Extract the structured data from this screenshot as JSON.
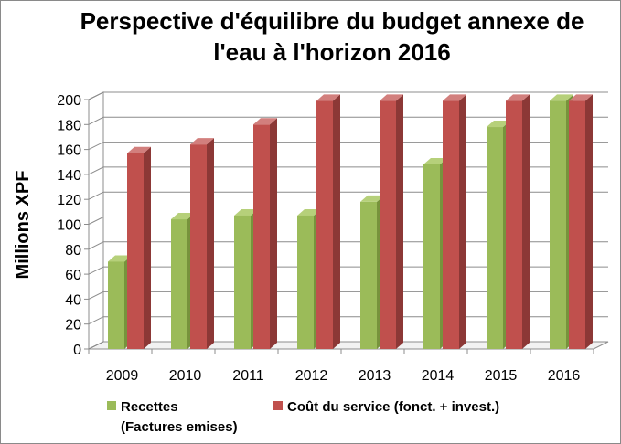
{
  "chart_data": {
    "type": "bar",
    "title_lines": [
      "Perspective d'équilibre du budget annexe de",
      "l'eau à l'horizon 2016"
    ],
    "ylabel": "Millions XPF",
    "xlabel": "",
    "ylim": [
      0,
      200
    ],
    "ytick_step": 20,
    "yticks": [
      "0",
      "20",
      "40",
      "60",
      "80",
      "100",
      "120",
      "140",
      "160",
      "180",
      "200"
    ],
    "categories": [
      "2009",
      "2010",
      "2011",
      "2012",
      "2013",
      "2014",
      "2015",
      "2016"
    ],
    "series": [
      {
        "name_lines": [
          "Recettes",
          "(Factures emises)"
        ],
        "color": "#9bbb59",
        "side": "#77933c",
        "top": "#b6d07a",
        "values": [
          70,
          104,
          107,
          107,
          118,
          148,
          178,
          199
        ]
      },
      {
        "name_lines": [
          "Coût du service (fonct. + invest.)"
        ],
        "color": "#c0504d",
        "side": "#8c3836",
        "top": "#d27f7d",
        "values": [
          157,
          164,
          180,
          199,
          199,
          199,
          199,
          199
        ]
      }
    ],
    "grid": true,
    "legend_position": "bottom"
  }
}
